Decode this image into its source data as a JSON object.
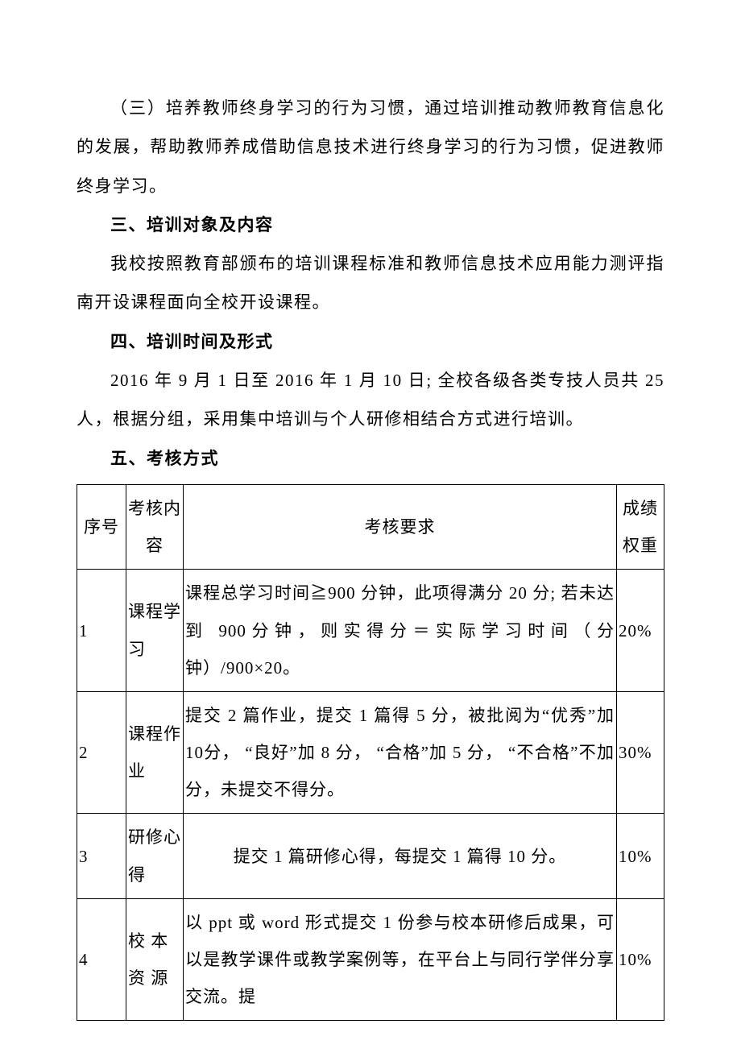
{
  "paragraphs": {
    "p1": "（三）培养教师终身学习的行为习惯，通过培训推动教师教育信息化的发展，帮助教师养成借助信息技术进行终身学习的行为习惯，促进教师终身学习。",
    "h3": "三、培训对象及内容",
    "p2": "我校按照教育部颁布的培训课程标准和教师信息技术应用能力测评指南开设课程面向全校开设课程。",
    "h4": "四、培训时间及形式",
    "p3": "2016  年  9  月 1 日至   2016  年 1 月 10 日;  全校各级各类专技人员共 25 人，根据分组，采用集中培训与个人研修相结合方式进行培训。",
    "h5": "五、考核方式"
  },
  "table": {
    "headers": {
      "seq": "序号",
      "content": "考核内容",
      "requirement": "考核要求",
      "weight": "成绩权重"
    },
    "rows": [
      {
        "seq": "1",
        "content": "课程学习",
        "requirement": "课程总学习时间≧900 分钟，此项得满分 20 分; 若未达到 900分钟，则实得分＝实际学习时间（分钟）/900×20。",
        "weight": "20%"
      },
      {
        "seq": "2",
        "content": "课程作业",
        "requirement": "提交 2 篇作业，提交 1 篇得 5 分，被批阅为“优秀”加 10分， “良好”加 8 分， “合格”加 5 分， “不合格”不加分，未提交不得分。",
        "weight": "30%"
      },
      {
        "seq": "3",
        "content": "研修心得",
        "requirement": "提交 1 篇研修心得，每提交 1 篇得 10 分。",
        "weight": "10%"
      },
      {
        "seq": "4",
        "content": "校 本资 源",
        "requirement": "以 ppt 或 word 形式提交 1 份参与校本研修后成果，可以是教学课件或教学案例等，在平台上与同行学伴分享交流。提",
        "weight": "10%"
      }
    ]
  }
}
